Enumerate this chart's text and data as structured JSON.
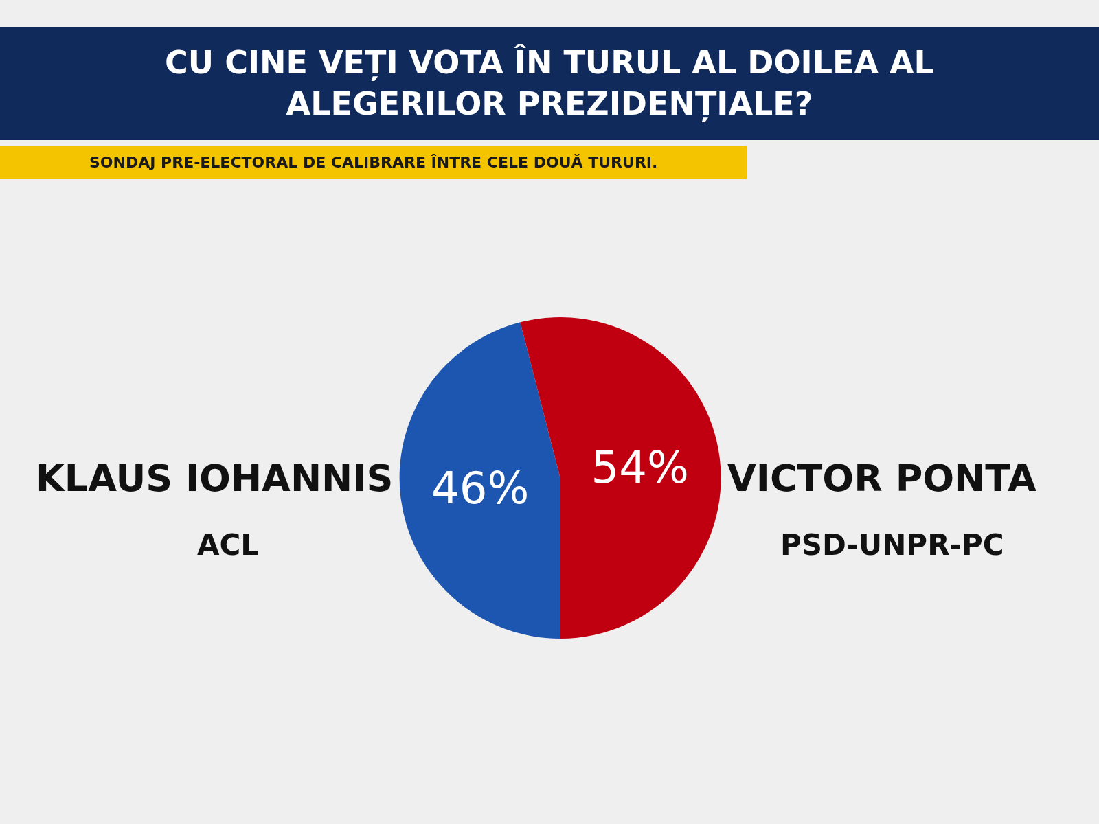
{
  "chart_data": {
    "type": "pie",
    "title": "CU CINE VEȚI VOTA ÎN TURUL AL DOILEA AL ALEGERILOR PREZIDENȚIALE?",
    "subtitle": "SONDAJ  PRE-ELECTORAL DE CALIBRARE ÎNTRE CELE DOUĂ TURURI.",
    "categories": [
      "KLAUS IOHANNIS",
      "VICTOR PONTA"
    ],
    "values": [
      46,
      54
    ],
    "colors": [
      "#1d56b0",
      "#c00010"
    ],
    "value_labels": [
      "46%",
      "54%"
    ],
    "annotations": [
      "ACL",
      "PSD-UNPR-PC"
    ],
    "legend": false
  }
}
